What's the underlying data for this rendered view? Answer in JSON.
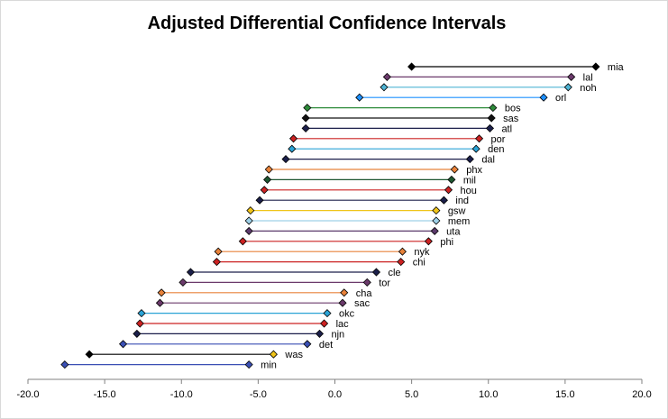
{
  "chart_data": {
    "type": "range-dumbbell",
    "title": "Adjusted Differential Confidence Intervals",
    "xlim": [
      -20,
      20
    ],
    "x_ticks": [
      -20,
      -15,
      -10,
      -5,
      0,
      5,
      10,
      15,
      20
    ],
    "x_tick_labels": [
      "-20.0",
      "-15.0",
      "-10.0",
      "-5.0",
      "0.0",
      "5.0",
      "10.0",
      "15.0",
      "20.0"
    ],
    "grid": false,
    "series": [
      {
        "team": "mia",
        "low": 5.0,
        "high": 17.0,
        "color": "#000000"
      },
      {
        "team": "lal",
        "low": 3.4,
        "high": 15.4,
        "color": "#6b3a6b"
      },
      {
        "team": "noh",
        "low": 3.2,
        "high": 15.2,
        "color": "#4fb4d4"
      },
      {
        "team": "orl",
        "low": 1.6,
        "high": 13.6,
        "color": "#1e90ff"
      },
      {
        "team": "bos",
        "low": -1.8,
        "high": 10.3,
        "color": "#2e8b3a"
      },
      {
        "team": "sas",
        "low": -1.9,
        "high": 10.2,
        "color": "#111111"
      },
      {
        "team": "atl",
        "low": -1.9,
        "high": 10.1,
        "color": "#1b1f4a"
      },
      {
        "team": "por",
        "low": -2.7,
        "high": 9.4,
        "color": "#cc2222"
      },
      {
        "team": "den",
        "low": -2.8,
        "high": 9.2,
        "color": "#2aa3d6"
      },
      {
        "team": "dal",
        "low": -3.2,
        "high": 8.8,
        "color": "#1b1f4a"
      },
      {
        "team": "phx",
        "low": -4.3,
        "high": 7.8,
        "color": "#e8823a"
      },
      {
        "team": "mil",
        "low": -4.4,
        "high": 7.6,
        "color": "#1e5631"
      },
      {
        "team": "hou",
        "low": -4.6,
        "high": 7.4,
        "color": "#cc2222"
      },
      {
        "team": "ind",
        "low": -4.9,
        "high": 7.1,
        "color": "#1b1f4a"
      },
      {
        "team": "gsw",
        "low": -5.5,
        "high": 6.6,
        "color": "#f0c419"
      },
      {
        "team": "mem",
        "low": -5.6,
        "high": 6.6,
        "color": "#9fd1e8"
      },
      {
        "team": "uta",
        "low": -5.6,
        "high": 6.5,
        "color": "#5b3a6b"
      },
      {
        "team": "phi",
        "low": -6.0,
        "high": 6.1,
        "color": "#cc2222"
      },
      {
        "team": "nyk",
        "low": -7.6,
        "high": 4.4,
        "color": "#e8823a"
      },
      {
        "team": "chi",
        "low": -7.7,
        "high": 4.3,
        "color": "#cc2222"
      },
      {
        "team": "cle",
        "low": -9.4,
        "high": 2.7,
        "color": "#1b1f4a"
      },
      {
        "team": "tor",
        "low": -9.9,
        "high": 2.1,
        "color": "#6b3a6b"
      },
      {
        "team": "cha",
        "low": -11.3,
        "high": 0.6,
        "color": "#e8823a"
      },
      {
        "team": "sac",
        "low": -11.4,
        "high": 0.5,
        "color": "#6b3a6b"
      },
      {
        "team": "okc",
        "low": -12.6,
        "high": -0.5,
        "color": "#2aa3d6"
      },
      {
        "team": "lac",
        "low": -12.7,
        "high": -0.7,
        "color": "#cc2222"
      },
      {
        "team": "njn",
        "low": -12.9,
        "high": -1.0,
        "color": "#1b1f4a"
      },
      {
        "team": "det",
        "low": -13.8,
        "high": -1.8,
        "color": "#3a4fb4"
      },
      {
        "team": "was",
        "low": -16.0,
        "high": -4.0,
        "color": "#000000",
        "high_color": "#f0c419"
      },
      {
        "team": "min",
        "low": -17.6,
        "high": -5.6,
        "color": "#3a4fb4"
      }
    ]
  }
}
